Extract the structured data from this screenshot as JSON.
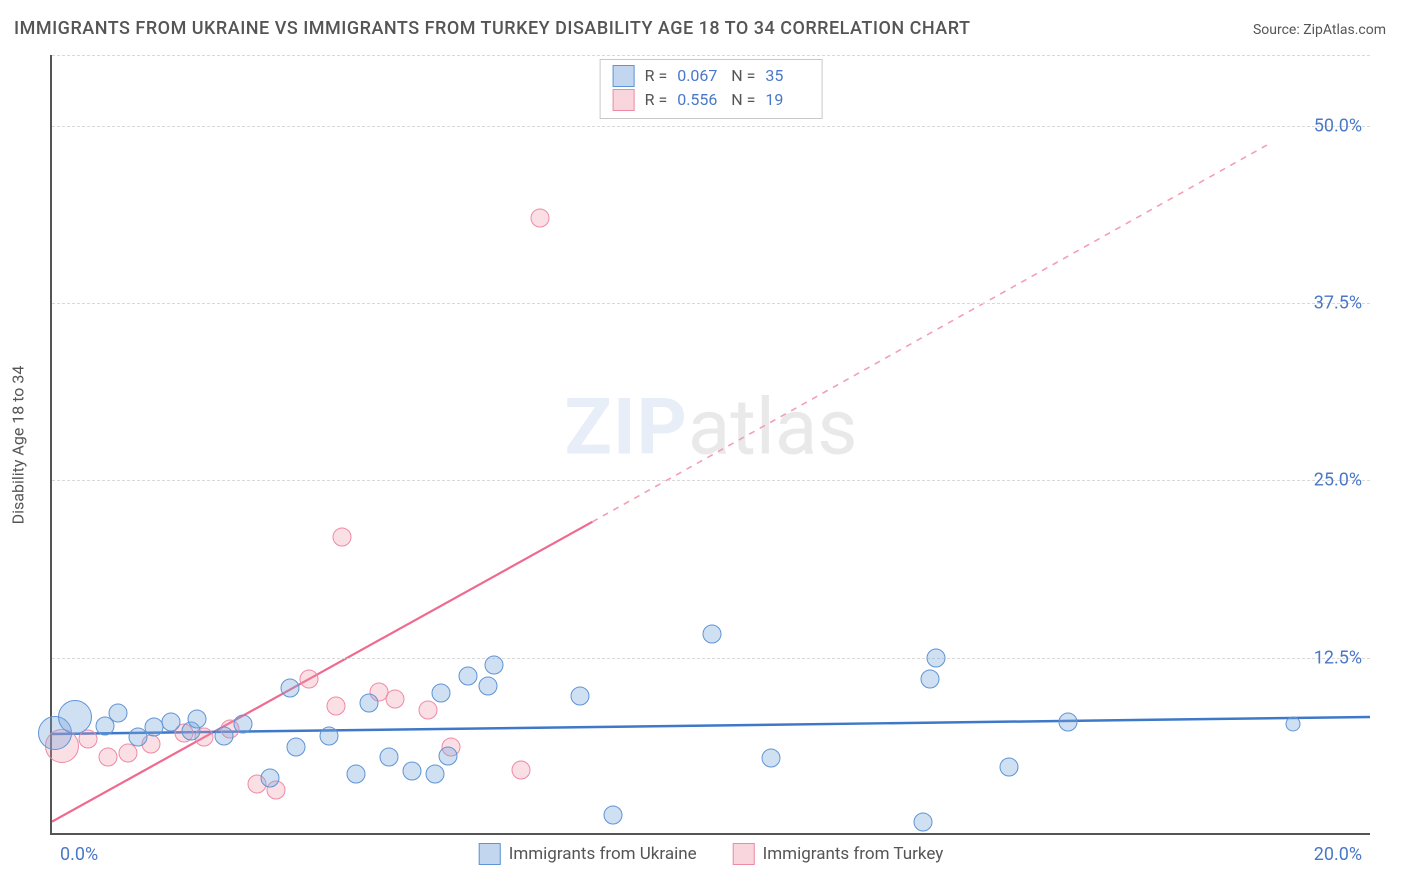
{
  "title": "IMMIGRANTS FROM UKRAINE VS IMMIGRANTS FROM TURKEY DISABILITY AGE 18 TO 34 CORRELATION CHART",
  "source_label": "Source:",
  "source_value": "ZipAtlas.com",
  "y_axis_title": "Disability Age 18 to 34",
  "watermark": {
    "part1": "ZIP",
    "part2": "atlas"
  },
  "chart": {
    "type": "scatter",
    "background_color": "#ffffff",
    "axis_color": "#555555",
    "grid_color": "#d9d9d9",
    "grid_dashed": true,
    "text_color": "#555555",
    "value_color": "#4a78c8",
    "xlim": [
      0,
      20
    ],
    "ylim": [
      0,
      55
    ],
    "x_tick_labels": {
      "left": "0.0%",
      "right": "20.0%"
    },
    "y_ticks": [
      {
        "v": 12.5,
        "label": "12.5%"
      },
      {
        "v": 25.0,
        "label": "25.0%"
      },
      {
        "v": 37.5,
        "label": "37.5%"
      },
      {
        "v": 50.0,
        "label": "50.0%"
      }
    ],
    "series": {
      "ukraine": {
        "label": "Immigrants from Ukraine",
        "swatch_fill": "rgba(120,165,220,0.45)",
        "swatch_border": "#5f94d6",
        "marker_fill": "rgba(120,165,220,0.35)",
        "marker_border": "#5f94d6",
        "R": "0.067",
        "N": "35",
        "trend": {
          "x1": 0,
          "y1": 7.0,
          "x2": 20,
          "y2": 8.2,
          "color": "#3f78c8",
          "width": 2.5,
          "dash": ""
        },
        "points": [
          {
            "x": 0.05,
            "y": 7.2,
            "sz": "lg"
          },
          {
            "x": 0.35,
            "y": 8.3,
            "sz": "lg"
          },
          {
            "x": 0.8,
            "y": 7.7,
            "sz": "md"
          },
          {
            "x": 1.0,
            "y": 8.6,
            "sz": "md"
          },
          {
            "x": 1.3,
            "y": 6.9,
            "sz": "md"
          },
          {
            "x": 1.55,
            "y": 7.6,
            "sz": "md"
          },
          {
            "x": 1.8,
            "y": 8.0,
            "sz": "md"
          },
          {
            "x": 2.1,
            "y": 7.3,
            "sz": "md"
          },
          {
            "x": 2.2,
            "y": 8.2,
            "sz": "md"
          },
          {
            "x": 2.6,
            "y": 7.0,
            "sz": "md"
          },
          {
            "x": 2.9,
            "y": 7.8,
            "sz": "md"
          },
          {
            "x": 3.3,
            "y": 4.0,
            "sz": "md"
          },
          {
            "x": 3.6,
            "y": 10.4,
            "sz": "md"
          },
          {
            "x": 3.7,
            "y": 6.2,
            "sz": "md"
          },
          {
            "x": 4.2,
            "y": 7.0,
            "sz": "md"
          },
          {
            "x": 4.6,
            "y": 4.3,
            "sz": "md"
          },
          {
            "x": 4.8,
            "y": 9.3,
            "sz": "md"
          },
          {
            "x": 5.1,
            "y": 5.5,
            "sz": "md"
          },
          {
            "x": 5.45,
            "y": 4.5,
            "sz": "md"
          },
          {
            "x": 5.8,
            "y": 4.3,
            "sz": "md"
          },
          {
            "x": 5.9,
            "y": 10.0,
            "sz": "md"
          },
          {
            "x": 6.0,
            "y": 5.6,
            "sz": "md"
          },
          {
            "x": 6.3,
            "y": 11.2,
            "sz": "md"
          },
          {
            "x": 6.6,
            "y": 10.5,
            "sz": "md"
          },
          {
            "x": 6.7,
            "y": 12.0,
            "sz": "md"
          },
          {
            "x": 8.0,
            "y": 9.8,
            "sz": "md"
          },
          {
            "x": 8.5,
            "y": 1.4,
            "sz": "md"
          },
          {
            "x": 10.0,
            "y": 14.2,
            "sz": "md"
          },
          {
            "x": 10.9,
            "y": 5.4,
            "sz": "md"
          },
          {
            "x": 13.2,
            "y": 0.9,
            "sz": "md"
          },
          {
            "x": 13.3,
            "y": 11.0,
            "sz": "md"
          },
          {
            "x": 13.4,
            "y": 12.5,
            "sz": "md"
          },
          {
            "x": 14.5,
            "y": 4.8,
            "sz": "md"
          },
          {
            "x": 15.4,
            "y": 8.0,
            "sz": "md"
          },
          {
            "x": 18.8,
            "y": 7.8,
            "sz": "sm"
          }
        ]
      },
      "turkey": {
        "label": "Immigrants from Turkey",
        "swatch_fill": "rgba(240,150,170,0.40)",
        "swatch_border": "#ef8aa6",
        "marker_fill": "rgba(240,150,170,0.30)",
        "marker_border": "#ef8aa6",
        "R": "0.556",
        "N": "19",
        "trend": {
          "x1": 0,
          "y1": 0.8,
          "x2": 8.2,
          "y2": 22.0,
          "color": "#ef6a8e",
          "width": 2.2,
          "dash": ""
        },
        "trend_extra": {
          "x1": 8.2,
          "y1": 22.0,
          "x2": 18.5,
          "y2": 48.8,
          "color": "#f39fb4",
          "width": 1.6,
          "dash": "6,6"
        },
        "points": [
          {
            "x": 0.15,
            "y": 6.3,
            "sz": "lg"
          },
          {
            "x": 0.55,
            "y": 6.8,
            "sz": "md"
          },
          {
            "x": 0.85,
            "y": 5.5,
            "sz": "md"
          },
          {
            "x": 1.15,
            "y": 5.8,
            "sz": "md"
          },
          {
            "x": 1.5,
            "y": 6.4,
            "sz": "md"
          },
          {
            "x": 2.0,
            "y": 7.2,
            "sz": "md"
          },
          {
            "x": 2.3,
            "y": 6.9,
            "sz": "md"
          },
          {
            "x": 2.7,
            "y": 7.5,
            "sz": "md"
          },
          {
            "x": 3.1,
            "y": 3.6,
            "sz": "md"
          },
          {
            "x": 3.4,
            "y": 3.2,
            "sz": "md"
          },
          {
            "x": 3.9,
            "y": 11.0,
            "sz": "md"
          },
          {
            "x": 4.3,
            "y": 9.1,
            "sz": "md"
          },
          {
            "x": 4.4,
            "y": 21.0,
            "sz": "md"
          },
          {
            "x": 4.95,
            "y": 10.1,
            "sz": "md"
          },
          {
            "x": 5.2,
            "y": 9.6,
            "sz": "md"
          },
          {
            "x": 5.7,
            "y": 8.8,
            "sz": "md"
          },
          {
            "x": 6.05,
            "y": 6.2,
            "sz": "md"
          },
          {
            "x": 7.1,
            "y": 4.6,
            "sz": "md"
          },
          {
            "x": 7.4,
            "y": 43.5,
            "sz": "md"
          }
        ]
      }
    }
  },
  "legend": {
    "series_order": [
      "ukraine",
      "turkey"
    ]
  }
}
